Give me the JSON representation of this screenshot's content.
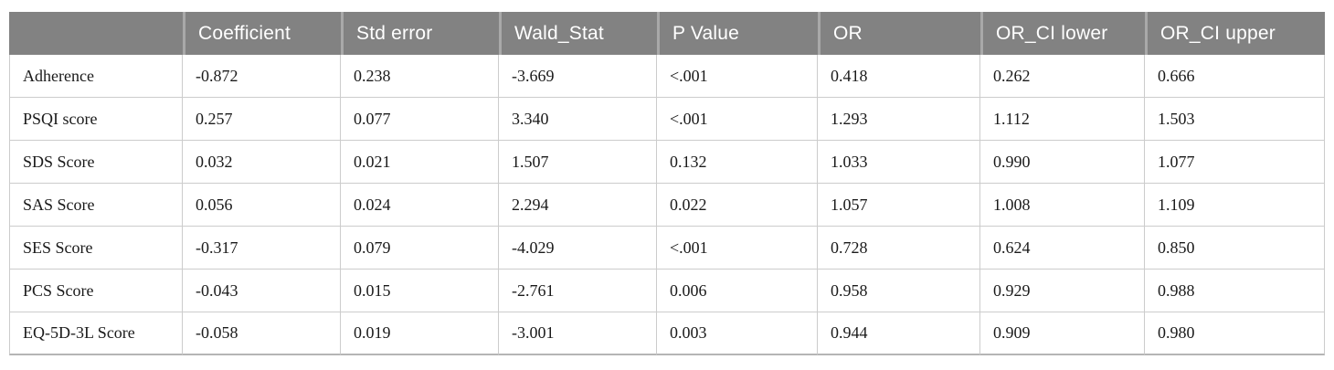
{
  "table": {
    "description": "logistic-regression-results-table",
    "columns": [
      "",
      "Coefficient",
      "Std error",
      "Wald_Stat",
      "P Value",
      "OR",
      "OR_CI lower",
      "OR_CI upper"
    ],
    "rows": [
      {
        "label": "Adherence",
        "values": [
          "-0.872",
          "0.238",
          "-3.669",
          "<.001",
          "0.418",
          "0.262",
          "0.666"
        ]
      },
      {
        "label": "PSQI score",
        "values": [
          "0.257",
          "0.077",
          "3.340",
          "<.001",
          "1.293",
          "1.112",
          "1.503"
        ]
      },
      {
        "label": "SDS Score",
        "values": [
          "0.032",
          "0.021",
          "1.507",
          "0.132",
          "1.033",
          "0.990",
          "1.077"
        ]
      },
      {
        "label": "SAS Score",
        "values": [
          "0.056",
          "0.024",
          "2.294",
          "0.022",
          "1.057",
          "1.008",
          "1.109"
        ]
      },
      {
        "label": "SES Score",
        "values": [
          "-0.317",
          "0.079",
          "-4.029",
          "<.001",
          "0.728",
          "0.624",
          "0.850"
        ]
      },
      {
        "label": "PCS Score",
        "values": [
          "-0.043",
          "0.015",
          "-2.761",
          "0.006",
          "0.958",
          "0.929",
          "0.988"
        ]
      },
      {
        "label": "EQ-5D-3L Score",
        "values": [
          "-0.058",
          "0.019",
          "-3.001",
          "0.003",
          "0.944",
          "0.909",
          "0.980"
        ]
      }
    ],
    "colors": {
      "header_bg": "#828282",
      "header_text": "#ffffff",
      "header_divider": "#a9a9a9",
      "grid_border": "#cccccc",
      "bottom_border": "#b5b5b5",
      "body_text": "#1a1a1a",
      "body_bg": "#ffffff"
    }
  }
}
